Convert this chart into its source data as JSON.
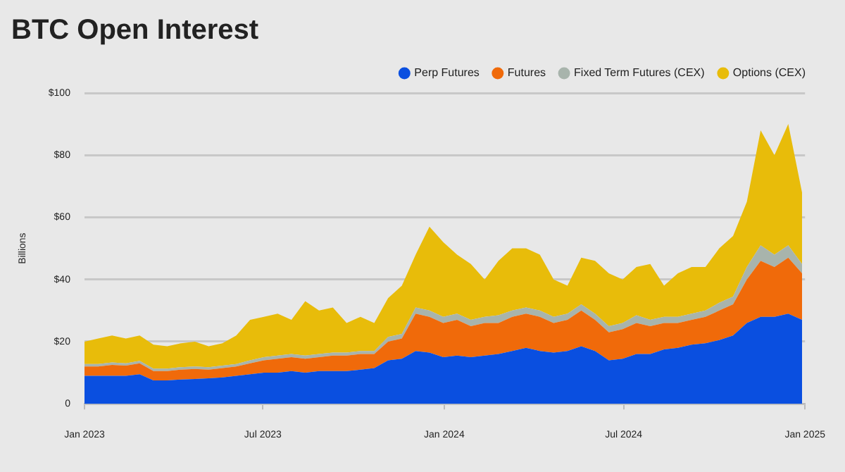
{
  "chart_data": {
    "type": "area",
    "title": "BTC Open Interest",
    "ylabel": "Billions",
    "stacked": true,
    "grid": "y",
    "legend": "top right",
    "marker": "none",
    "x": [
      "2023-01-01",
      "2023-01-15",
      "2023-01-29",
      "2023-02-12",
      "2023-02-26",
      "2023-03-12",
      "2023-03-26",
      "2023-04-09",
      "2023-04-23",
      "2023-05-07",
      "2023-05-21",
      "2023-06-04",
      "2023-06-18",
      "2023-07-02",
      "2023-07-16",
      "2023-07-30",
      "2023-08-13",
      "2023-08-27",
      "2023-09-10",
      "2023-09-24",
      "2023-10-08",
      "2023-10-22",
      "2023-11-05",
      "2023-11-19",
      "2023-12-03",
      "2023-12-17",
      "2023-12-31",
      "2024-01-14",
      "2024-01-28",
      "2024-02-11",
      "2024-02-25",
      "2024-03-10",
      "2024-03-24",
      "2024-04-07",
      "2024-04-21",
      "2024-05-05",
      "2024-05-19",
      "2024-06-02",
      "2024-06-16",
      "2024-06-30",
      "2024-07-14",
      "2024-07-28",
      "2024-08-11",
      "2024-08-25",
      "2024-09-08",
      "2024-09-22",
      "2024-10-06",
      "2024-10-20",
      "2024-11-03",
      "2024-11-17",
      "2024-12-01",
      "2024-12-15",
      "2024-12-29"
    ],
    "xlim": [
      "2023-01-01",
      "2025-01-01"
    ],
    "xticks": [
      {
        "value": "2023-01-01",
        "label": "Jan 2023"
      },
      {
        "value": "2023-07-01",
        "label": "Jul 2023"
      },
      {
        "value": "2024-01-01",
        "label": "Jan 2024"
      },
      {
        "value": "2024-07-01",
        "label": "Jul 2024"
      },
      {
        "value": "2025-01-01",
        "label": "Jan 2025"
      }
    ],
    "ylim": [
      0,
      100
    ],
    "yticks": [
      0,
      {
        "value": 20,
        "label": "$20"
      },
      {
        "value": 40,
        "label": "$40"
      },
      {
        "value": 60,
        "label": "$60"
      },
      {
        "value": 80,
        "label": "$80"
      },
      {
        "value": 100,
        "label": "$100"
      }
    ],
    "series": [
      {
        "name": "Perp Futures",
        "color": "#0a4fe0",
        "values": [
          9,
          9,
          9,
          9,
          9.5,
          7.5,
          7.5,
          7.8,
          8,
          8.2,
          8.5,
          9,
          9.5,
          10,
          10,
          10.5,
          10,
          10.5,
          10.5,
          10.5,
          11,
          11.5,
          14,
          14.5,
          17,
          16.5,
          15,
          15.5,
          15,
          15.5,
          16,
          17,
          18,
          17,
          16.5,
          17,
          18.5,
          17,
          14,
          14.5,
          16,
          16,
          17.5,
          18,
          19,
          19.5,
          20.5,
          22,
          26,
          28,
          28,
          29,
          27
        ]
      },
      {
        "name": "Futures",
        "color": "#f06a0a",
        "values": [
          3,
          3,
          3.5,
          3.3,
          3.5,
          3,
          3,
          3.2,
          3.2,
          2.8,
          3,
          3,
          3.5,
          4,
          4.5,
          4.5,
          4.5,
          4.5,
          5,
          5,
          5,
          4.5,
          6,
          6.5,
          12,
          11.5,
          11,
          11.5,
          10,
          10.5,
          10,
          11,
          11,
          11,
          9.5,
          10,
          11.5,
          10,
          9,
          9.5,
          10,
          9,
          8.5,
          8,
          8,
          8.5,
          9.5,
          10,
          14,
          18,
          16,
          18,
          15
        ]
      },
      {
        "name": "Fixed Term Futures (CEX)",
        "color": "#a8b4ac",
        "values": [
          0.8,
          0.8,
          0.8,
          0.7,
          0.8,
          0.8,
          0.8,
          0.8,
          0.8,
          0.8,
          0.8,
          0.8,
          1,
          1,
          1,
          1,
          1,
          1,
          1,
          1,
          1,
          1,
          1.5,
          1.5,
          2,
          2,
          2,
          2,
          2,
          2,
          2.5,
          2,
          2,
          2,
          2,
          2,
          2,
          2,
          2,
          2,
          2.5,
          2,
          2,
          2,
          2,
          2,
          2.5,
          2.5,
          4,
          5,
          4,
          4,
          3
        ]
      },
      {
        "name": "Options (CEX)",
        "color": "#e8bc0a",
        "values": [
          7.2,
          8.2,
          8.7,
          8,
          8.2,
          7.7,
          7.2,
          7.7,
          8,
          6.7,
          7.2,
          9.2,
          13,
          13,
          13.5,
          11,
          17.5,
          14,
          14.5,
          9.5,
          11,
          9,
          12.5,
          15.5,
          17,
          27,
          24,
          19,
          18,
          12,
          17.5,
          20,
          19,
          18,
          12,
          9,
          15,
          17,
          17,
          14,
          15.5,
          18,
          10,
          14,
          15,
          14,
          17.5,
          19.5,
          21,
          37,
          32,
          39,
          23
        ]
      }
    ]
  }
}
